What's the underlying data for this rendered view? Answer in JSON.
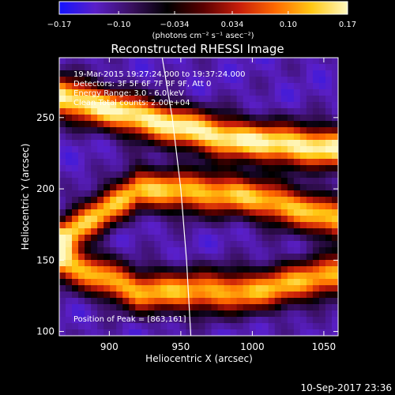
{
  "chart_data": {
    "type": "heatmap",
    "title": "Reconstructed RHESSI Image",
    "xlabel": "Heliocentric X (arcsec)",
    "ylabel": "Heliocentric Y (arcsec)",
    "xlim": [
      865,
      1060
    ],
    "ylim": [
      97,
      292
    ],
    "xticks": [
      {
        "v": 900,
        "label": "900"
      },
      {
        "v": 950,
        "label": "950"
      },
      {
        "v": 1000,
        "label": "1000"
      },
      {
        "v": 1050,
        "label": "1050"
      }
    ],
    "yticks": [
      {
        "v": 100,
        "label": "100"
      },
      {
        "v": 150,
        "label": "150"
      },
      {
        "v": 200,
        "label": "200"
      },
      {
        "v": 250,
        "label": "250"
      }
    ],
    "colorbar": {
      "min": -0.17,
      "max": 0.17,
      "ticks": [
        {
          "v": -0.17,
          "label": "−0.17"
        },
        {
          "v": -0.1,
          "label": "−0.10"
        },
        {
          "v": -0.034,
          "label": "−0.034"
        },
        {
          "v": 0.034,
          "label": "0.034"
        },
        {
          "v": 0.1,
          "label": "0.10"
        },
        {
          "v": 0.17,
          "label": "0.17"
        }
      ],
      "units": "(photons cm⁻² s⁻¹ asec⁻²)",
      "colors": [
        "#1414ff",
        "#5a1fc8",
        "#3a1060",
        "#000000",
        "#5a0000",
        "#c81e0a",
        "#ff6a00",
        "#ffc814",
        "#fff8c0"
      ]
    },
    "annotations": {
      "time_range": "19-Mar-2015 19:27:24.000 to 19:37:24.000",
      "detectors": "Detectors: 3F 5F 6F 7F 8F 9F, Att 0",
      "energy": "Energy Range: 3.0 - 6.0 keV",
      "clean": "Clean    Total counts: 2.00e+04",
      "peak": "Position of Peak = [863,161]"
    },
    "features": [
      {
        "name": "bright-band-upper",
        "x": [
          865,
          930,
          980,
          1010,
          1060
        ],
        "y": [
          265,
          248,
          236,
          232,
          228
        ],
        "intensity": 0.17
      },
      {
        "name": "bright-band-middle",
        "x": [
          865,
          920,
          990,
          1040,
          1060
        ],
        "y": [
          165,
          200,
          196,
          184,
          178
        ],
        "intensity": 0.13
      },
      {
        "name": "bright-band-lower",
        "x": [
          865,
          920,
          1000,
          1060
        ],
        "y": [
          150,
          128,
          128,
          140
        ],
        "intensity": 0.12
      }
    ],
    "limb_curve": {
      "x": [
        937,
        944,
        950,
        954,
        957
      ],
      "y": [
        292,
        250,
        200,
        150,
        97
      ]
    }
  },
  "footer": {
    "timestamp": "10-Sep-2017 23:36"
  }
}
